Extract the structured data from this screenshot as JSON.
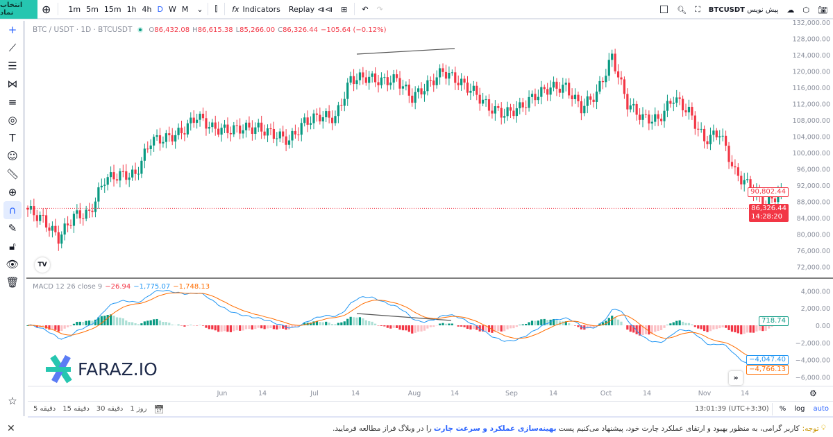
{
  "toolbar": {
    "symbol_button": "انتخاب نماد",
    "timeframes": [
      "1m",
      "5m",
      "15m",
      "1h",
      "4h",
      "D",
      "W",
      "M"
    ],
    "active_timeframe": "D",
    "indicators": "Indicators",
    "replay": "Replay",
    "draft_label": "پیش نویس",
    "symbol": "BTCUSDT"
  },
  "legend": {
    "title": "BTC / USDT · 1D · BTCUSDT",
    "o_label": "O",
    "o": "86,432.08",
    "h_label": "H",
    "h": "86,615.38",
    "l_label": "L",
    "l": "85,266.00",
    "c_label": "C",
    "c": "86,326.44",
    "change": "−105.64 (−0.12%)"
  },
  "macd_legend": {
    "label": "MACD 12 26 close 9",
    "hist": "−26.94",
    "macd": "−1,775.07",
    "signal": "−1,748.13"
  },
  "price_tags": {
    "line": "90,802.44",
    "last": "86,326.44",
    "countdown": "14:28:20"
  },
  "macd_tags": {
    "hist": "718.74",
    "macd": "−4,047.40",
    "signal": "−4,766.13"
  },
  "colors": {
    "up": "#089981",
    "down": "#f23645",
    "macd": "#2196f3",
    "signal": "#ff6d00",
    "accent": "#26c6b0"
  },
  "chart_data": {
    "type": "candlestick",
    "price_axis": {
      "ticks": [
        "132,000.00",
        "128,000.00",
        "124,000.00",
        "120,000.00",
        "116,000.00",
        "112,000.00",
        "108,000.00",
        "104,000.00",
        "100,000.00",
        "96,000.00",
        "92,000.00",
        "88,000.00",
        "84,000.00",
        "80,000.00",
        "76,000.00",
        "72,000.00"
      ],
      "range": [
        72000,
        132000
      ]
    },
    "macd_axis": {
      "ticks": [
        "4,000.00",
        "2,000.00",
        "0.00",
        "−2,000.00",
        "−4,000.00",
        "−6,000.00"
      ],
      "range": [
        -6000,
        4000
      ]
    },
    "time_axis": [
      "Jun",
      "14",
      "Jul",
      "14",
      "Aug",
      "14",
      "Sep",
      "14",
      "Oct",
      "14",
      "Nov",
      "14"
    ],
    "closes": [
      [
        "Mar 30",
        86000
      ],
      [
        "Apr 4",
        83500
      ],
      [
        "Apr 9",
        79000
      ],
      [
        "Apr 14",
        84500
      ],
      [
        "Apr 19",
        85000
      ],
      [
        "Apr 24",
        93500
      ],
      [
        "Apr 29",
        94500
      ],
      [
        "May 4",
        94500
      ],
      [
        "May 9",
        103000
      ],
      [
        "May 14",
        103500
      ],
      [
        "May 19",
        105000
      ],
      [
        "May 24",
        109000
      ],
      [
        "May 29",
        106000
      ],
      [
        "Jun 3",
        105500
      ],
      [
        "Jun 8",
        106000
      ],
      [
        "Jun 13",
        106000
      ],
      [
        "Jun 18",
        104500
      ],
      [
        "Jun 23",
        103000
      ],
      [
        "Jun 28",
        107500
      ],
      [
        "Jul 3",
        109000
      ],
      [
        "Jul 8",
        108500
      ],
      [
        "Jul 13",
        118000
      ],
      [
        "Jul 18",
        118500
      ],
      [
        "Jul 23",
        117500
      ],
      [
        "Jul 28",
        118000
      ],
      [
        "Aug 2",
        113500
      ],
      [
        "Aug 7",
        116500
      ],
      [
        "Aug 12",
        120000
      ],
      [
        "Aug 17",
        117500
      ],
      [
        "Aug 22",
        115000
      ],
      [
        "Aug 27",
        111000
      ],
      [
        "Sep 1",
        109500
      ],
      [
        "Sep 6",
        111000
      ],
      [
        "Sep 11",
        114000
      ],
      [
        "Sep 16",
        116000
      ],
      [
        "Sep 21",
        116000
      ],
      [
        "Sep 26",
        111000
      ],
      [
        "Oct 1",
        114500
      ],
      [
        "Oct 6",
        123500
      ],
      [
        "Oct 11",
        112000
      ],
      [
        "Oct 16",
        108500
      ],
      [
        "Oct 21",
        108000
      ],
      [
        "Oct 26",
        113500
      ],
      [
        "Oct 31",
        110000
      ],
      [
        "Nov 5",
        103000
      ],
      [
        "Nov 10",
        105000
      ],
      [
        "Nov 15",
        95000
      ],
      [
        "Nov 20",
        91500
      ],
      [
        "Nov 25",
        87000
      ],
      [
        "Nov 30",
        90800
      ]
    ],
    "current_price": 86326.44
  },
  "time_axis_status": {
    "clock": "13:01:39 (UTC+3:30)",
    "percent": "%",
    "log": "log",
    "auto": "auto"
  },
  "ranges": [
    "5 دقیقه",
    "15 دقیقه",
    "30 دقیقه",
    "1 روز"
  ],
  "watermark": "FARAZ.IO",
  "notice": {
    "label": "توجه:",
    "text1": "کاربر گرامی، به منظور بهبود و ارتقای عملکرد چارت خود، پیشنهاد می‌کنیم پست ",
    "link": "بهینه‌سازی عملکرد و سرعت چارت",
    "text2": " را در وبلاگ فراز مطالعه فرمایید."
  }
}
